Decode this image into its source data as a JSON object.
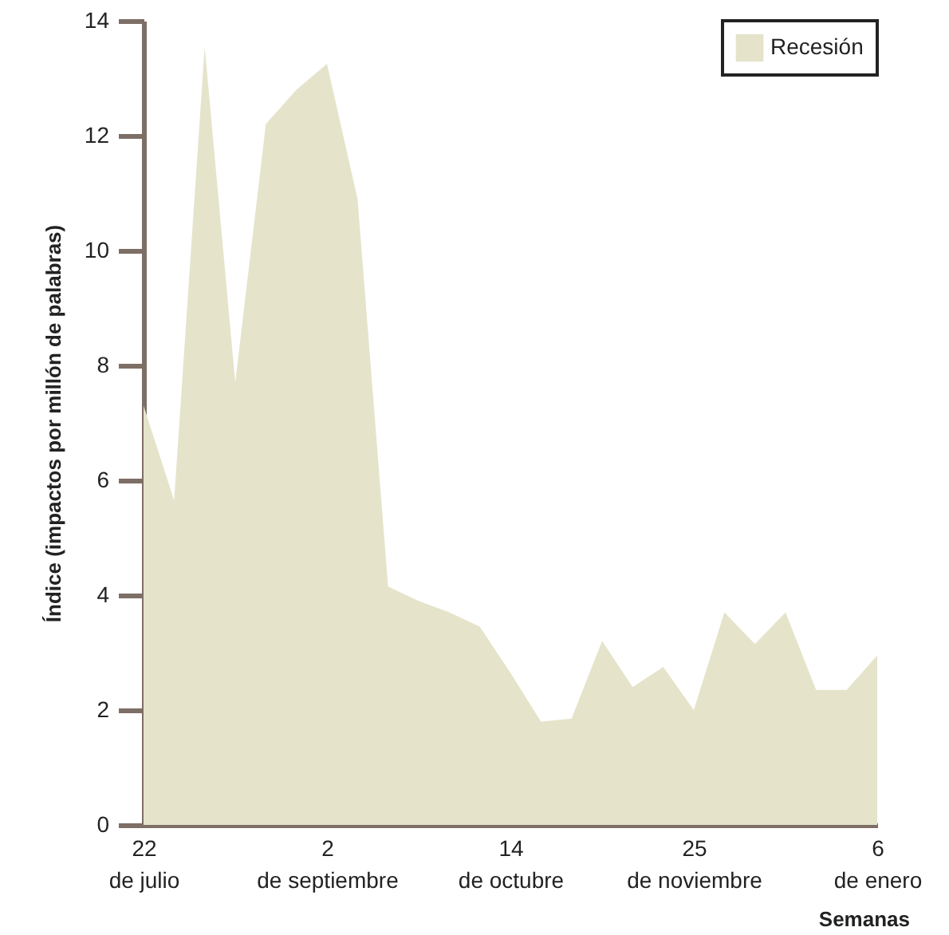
{
  "chart_data": {
    "type": "area",
    "xlabel": "Semanas",
    "ylabel": "Índice (impactos por millón de palabras)",
    "categories": [
      "22 de julio",
      null,
      null,
      null,
      null,
      null,
      "2 de septiembre",
      null,
      null,
      null,
      null,
      null,
      "14 de octubre",
      null,
      null,
      null,
      null,
      null,
      "25 de noviembre",
      null,
      null,
      null,
      null,
      null,
      "6 de enero"
    ],
    "series": [
      {
        "name": "Recesión",
        "color": "#e5e4cb",
        "values": [
          7.3,
          5.65,
          13.55,
          7.7,
          12.2,
          12.8,
          13.25,
          10.9,
          4.15,
          3.9,
          3.7,
          3.45,
          2.65,
          1.8,
          1.85,
          3.2,
          2.4,
          2.75,
          2.0,
          3.7,
          3.15,
          3.7,
          2.35,
          2.35,
          2.95
        ]
      }
    ],
    "ylim": [
      0,
      14
    ],
    "yticks": [
      0,
      2,
      4,
      6,
      8,
      10,
      12,
      14
    ],
    "legend": "top right"
  }
}
